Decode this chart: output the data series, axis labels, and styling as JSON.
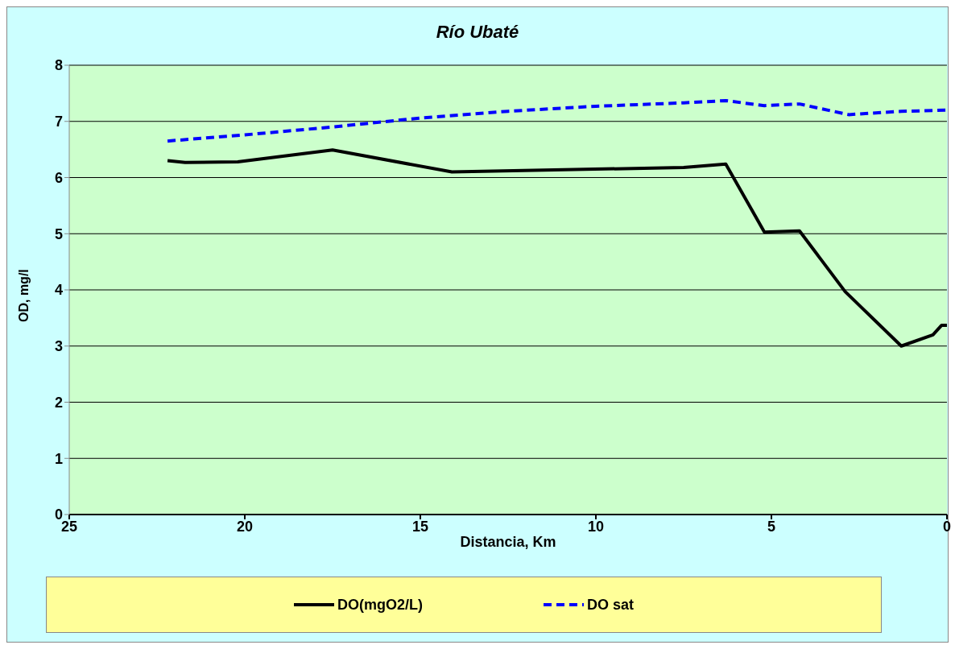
{
  "chart_data": {
    "type": "line",
    "title": "Río Ubaté",
    "xlabel": "Distancia, Km",
    "ylabel": "OD, mg/l",
    "xlim": [
      25,
      0
    ],
    "xticks": [
      25,
      20,
      15,
      10,
      5,
      0
    ],
    "ylim": [
      0,
      8
    ],
    "yticks": [
      0,
      1,
      2,
      3,
      4,
      5,
      6,
      7,
      8
    ],
    "grid": "y",
    "legend": "bottom",
    "marker": "none",
    "series": [
      {
        "name": "DO(mgO2/L)",
        "color": "#000000",
        "line_style": "solid",
        "x": [
          22.2,
          21.7,
          20.2,
          17.5,
          14.1,
          7.5,
          6.3,
          5.2,
          4.2,
          2.9,
          1.3,
          0.4,
          0.15,
          0
        ],
        "values": [
          6.3,
          6.27,
          6.28,
          6.49,
          6.1,
          6.18,
          6.24,
          5.03,
          5.05,
          3.97,
          3.0,
          3.2,
          3.37,
          3.37
        ]
      },
      {
        "name": "DO sat",
        "color": "#0000ff",
        "line_style": "dashed",
        "x": [
          22.2,
          20,
          17.5,
          15,
          12.5,
          10,
          7.5,
          6.3,
          5.2,
          4.2,
          2.8,
          1.3,
          0
        ],
        "values": [
          6.65,
          6.76,
          6.9,
          7.06,
          7.18,
          7.27,
          7.33,
          7.37,
          7.28,
          7.31,
          7.12,
          7.18,
          7.2
        ]
      }
    ]
  }
}
